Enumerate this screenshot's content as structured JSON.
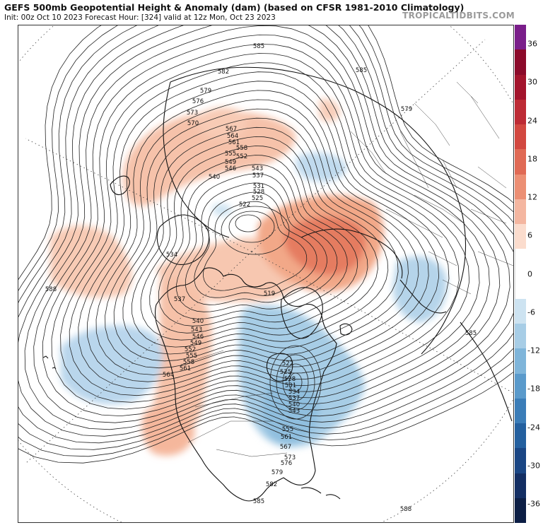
{
  "header": {
    "title": "GEFS 500mb Geopotential Height & Anomaly (dam) (based on CFSR 1981-2010 Climatology)",
    "subtitle": "Init: 00z Oct 10 2023   Forecast Hour: [324]   valid at 12z Mon, Oct 23 2023",
    "brand": "TROPICALTIDBITS.COM"
  },
  "colorbar": {
    "ticks": [
      "36",
      "30",
      "24",
      "18",
      "12",
      "6",
      "0",
      "-6",
      "-12",
      "-18",
      "-24",
      "-30",
      "-36"
    ],
    "colors": [
      "#7a1e8a",
      "#8b0a2a",
      "#a3142c",
      "#bd2b35",
      "#d24840",
      "#e06a55",
      "#ec8f74",
      "#f4b6a0",
      "#fbdccd",
      "#ffffff",
      "#ffffff",
      "#cde3f1",
      "#a7cde6",
      "#7fb5da",
      "#5a9acb",
      "#3b7db8",
      "#24609f",
      "#1a4684",
      "#132e63",
      "#0c1e45"
    ],
    "colors_note": ""
  },
  "contour_labels": {
    "l582": "582",
    "l585a": "585",
    "l579": "579",
    "l576": "576",
    "l573": "573",
    "l570": "570",
    "l567": "567",
    "l564a": "564",
    "l561a": "561",
    "l558a": "558",
    "l555a": "555",
    "l552a": "552",
    "l549": "549",
    "l546": "546",
    "l543a": "543",
    "l540a": "540",
    "l537": "537",
    "l534a": "534",
    "l531a": "531",
    "l528a": "528",
    "l525a": "525",
    "l522a": "522",
    "l519": "519",
    "l588a": "588",
    "l585b": "585",
    "l588b": "588",
    "l534b": "534",
    "l537b": "537",
    "l540b": "540",
    "l543b": "543",
    "l546b": "546",
    "l549b": "549",
    "l552b": "552",
    "l555b": "555",
    "l558b": "558",
    "l561b": "561",
    "l564b": "564",
    "l525b": "525",
    "l528b": "528",
    "l531b": "531",
    "l534c": "534",
    "l537c": "537",
    "l540c": "540",
    "l543c": "543",
    "l552c": "552",
    "l555c": "555",
    "l558c": "558",
    "l561c": "561",
    "l564c": "564",
    "l567b": "567",
    "l570b": "570",
    "l573b": "573",
    "l576b": "576",
    "l579b": "579",
    "l582b": "582",
    "l585c": "585",
    "l585d": "585",
    "l588c": "588",
    "l579c": "579",
    "l585e": "585",
    "l522b": "522"
  }
}
